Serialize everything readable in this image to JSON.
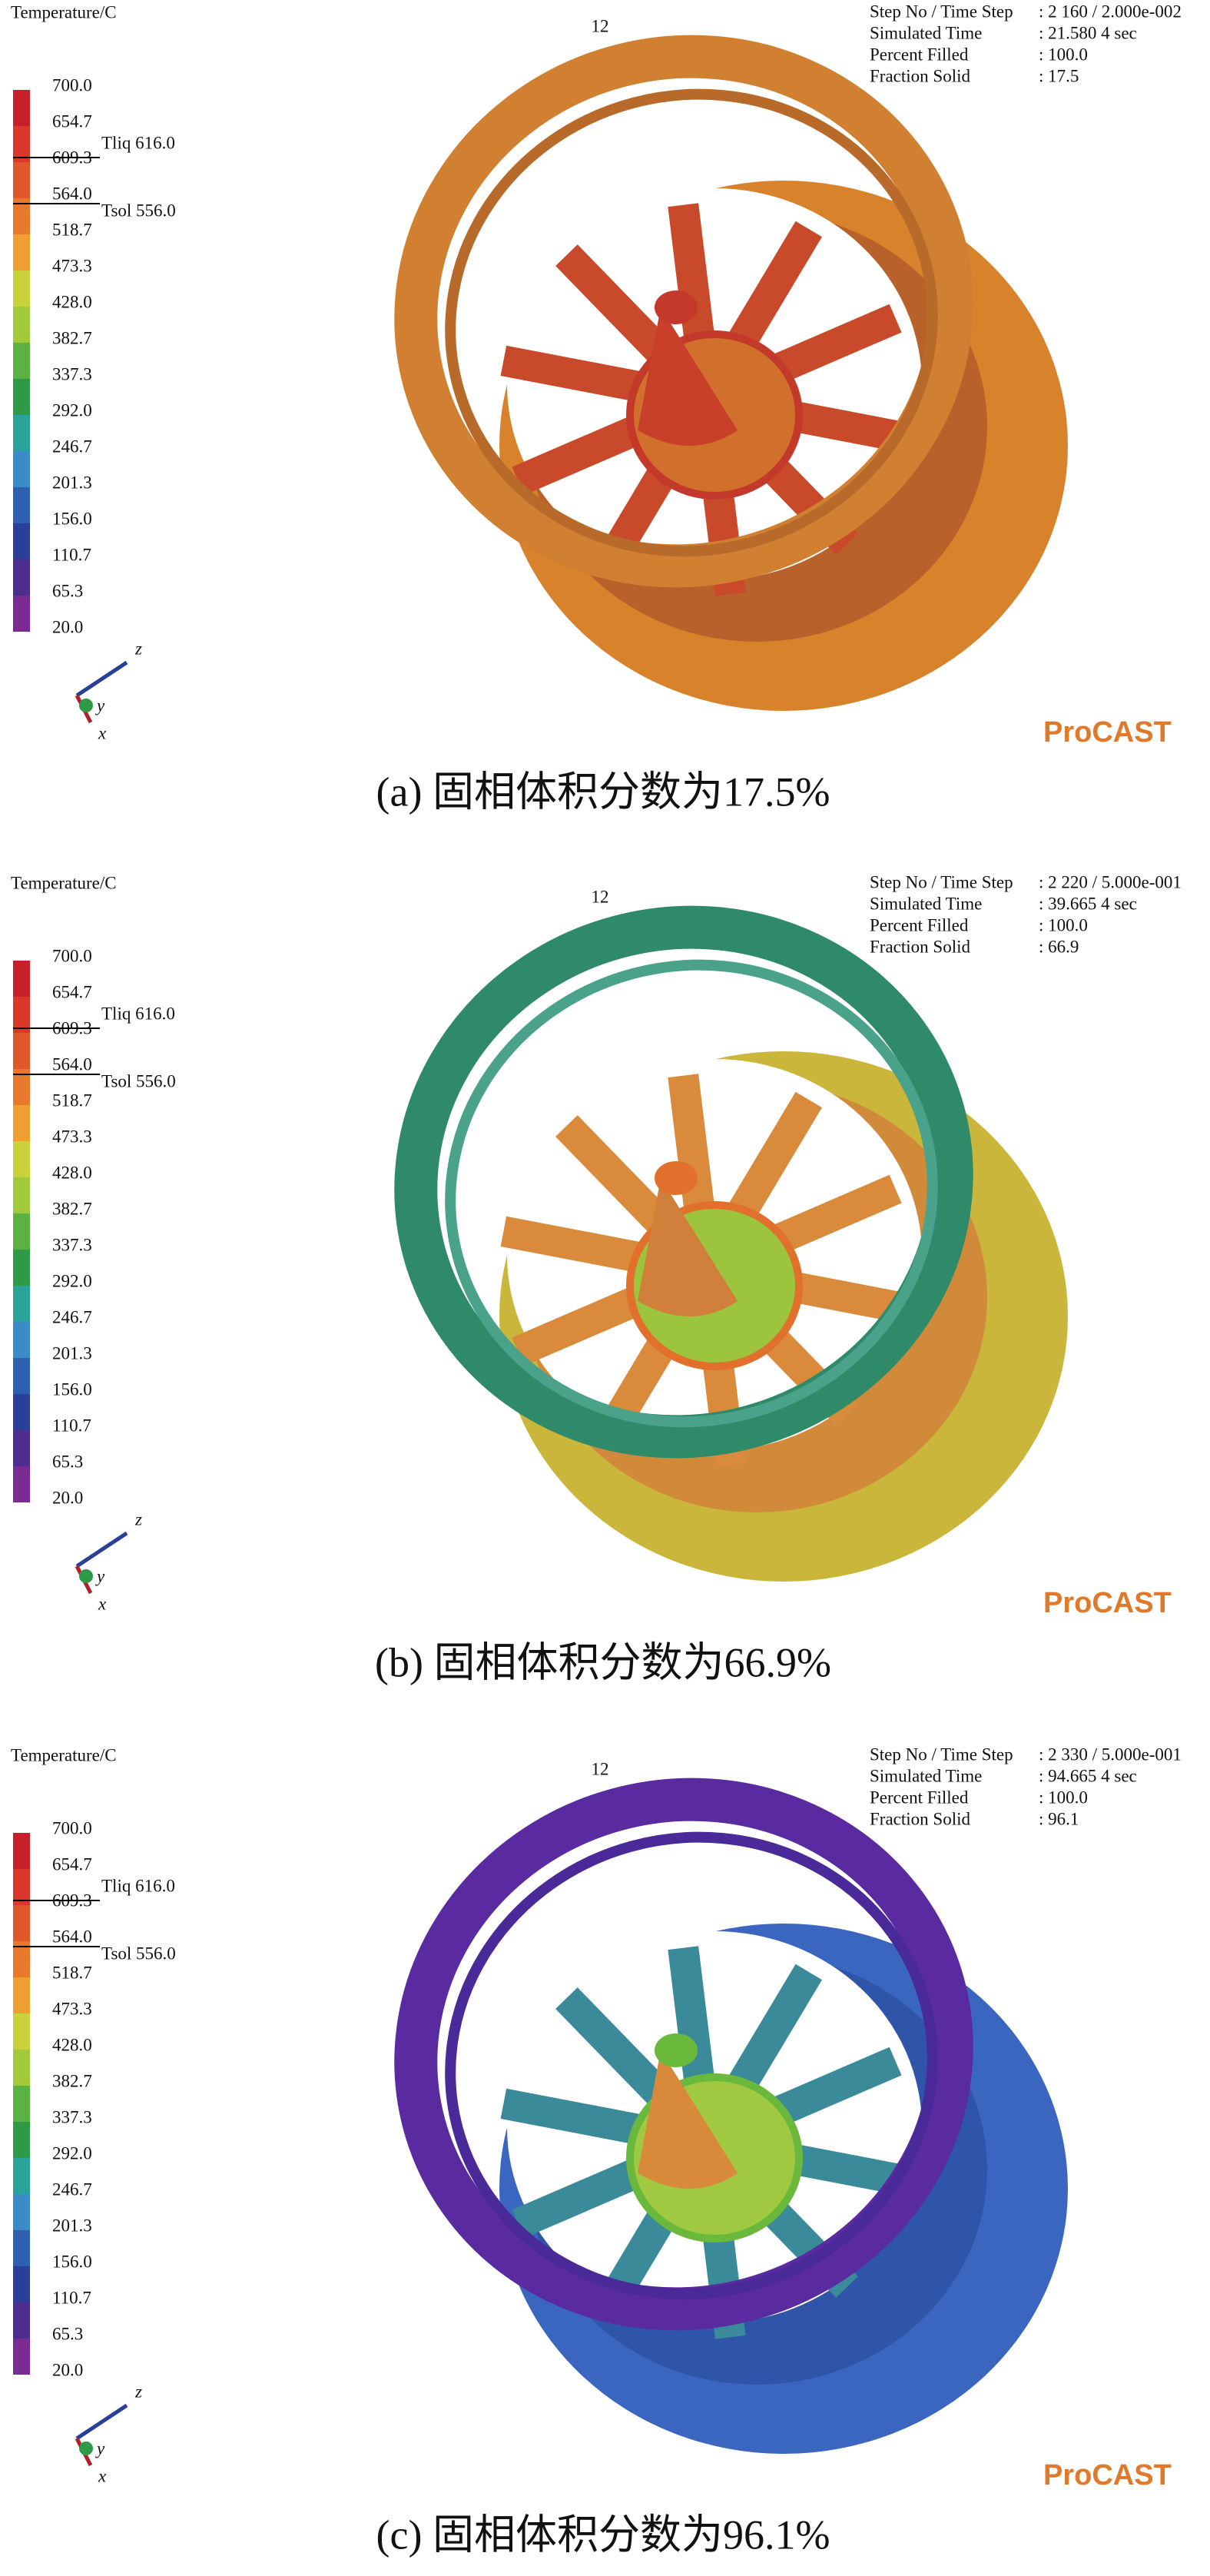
{
  "panels": [
    {
      "legend": {
        "title": "Temperature/C",
        "labels": [
          "700.0",
          "654.7",
          "609.3",
          "564.0",
          "518.7",
          "473.3",
          "428.0",
          "382.7",
          "337.3",
          "292.0",
          "246.7",
          "201.3",
          "156.0",
          "110.7",
          "65.3",
          "20.0"
        ],
        "tliq": "Tliq  616.0",
        "tsol": "Tsol  556.0"
      },
      "frame": "12",
      "info": [
        {
          "label": "Step No / Time Step",
          "value": ": 2 160 / 2.000e-002"
        },
        {
          "label": "Simulated Time",
          "value": ": 21.580 4 sec"
        },
        {
          "label": "Percent Filled",
          "value": ": 100.0"
        },
        {
          "label": "Fraction Solid",
          "value": ": 17.5"
        }
      ],
      "axes": {
        "z": "z",
        "y": "y",
        "x": "x"
      },
      "logo": "ProCAST",
      "caption": "(a) 固相体积分数为17.5%"
    },
    {
      "legend": {
        "title": "Temperature/C",
        "labels": [
          "700.0",
          "654.7",
          "609.3",
          "564.0",
          "518.7",
          "473.3",
          "428.0",
          "382.7",
          "337.3",
          "292.0",
          "246.7",
          "201.3",
          "156.0",
          "110.7",
          "65.3",
          "20.0"
        ],
        "tliq": "Tliq  616.0",
        "tsol": "Tsol  556.0"
      },
      "frame": "12",
      "info": [
        {
          "label": "Step No / Time Step",
          "value": ": 2 220 / 5.000e-001"
        },
        {
          "label": "Simulated Time",
          "value": ": 39.665 4 sec"
        },
        {
          "label": "Percent Filled",
          "value": ": 100.0"
        },
        {
          "label": "Fraction Solid",
          "value": ": 66.9"
        }
      ],
      "axes": {
        "z": "z",
        "y": "y",
        "x": "x"
      },
      "logo": "ProCAST",
      "caption": "(b) 固相体积分数为66.9%"
    },
    {
      "legend": {
        "title": "Temperature/C",
        "labels": [
          "700.0",
          "654.7",
          "609.3",
          "564.0",
          "518.7",
          "473.3",
          "428.0",
          "382.7",
          "337.3",
          "292.0",
          "246.7",
          "201.3",
          "156.0",
          "110.7",
          "65.3",
          "20.0"
        ],
        "tliq": "Tliq  616.0",
        "tsol": "Tsol  556.0"
      },
      "frame": "12",
      "info": [
        {
          "label": "Step No / Time Step",
          "value": ": 2 330 / 5.000e-001"
        },
        {
          "label": "Simulated Time",
          "value": ": 94.665 4 sec"
        },
        {
          "label": "Percent Filled",
          "value": ": 100.0"
        },
        {
          "label": "Fraction Solid",
          "value": ": 96.1"
        }
      ],
      "axes": {
        "z": "z",
        "y": "y",
        "x": "x"
      },
      "logo": "ProCAST",
      "caption": "(c) 固相体积分数为96.1%"
    }
  ]
}
